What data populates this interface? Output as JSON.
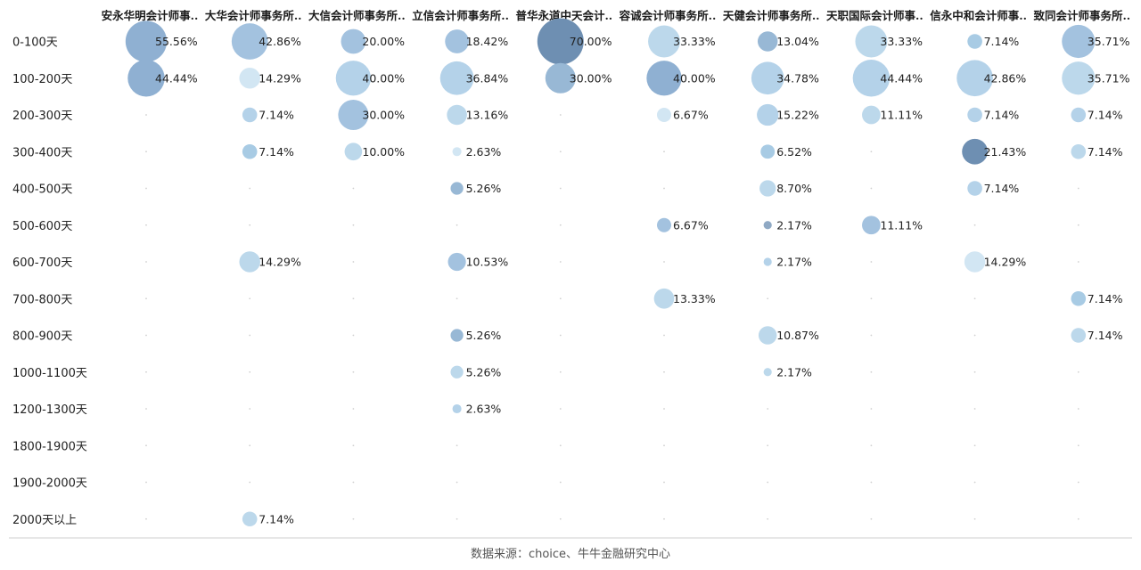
{
  "chart_data": {
    "type": "bubble-matrix",
    "columns": [
      "安永华明会计师事..",
      "大华会计师事务所..",
      "大信会计师事务所..",
      "立信会计师事务所..",
      "普华永道中天会计..",
      "容诚会计师事务所..",
      "天健会计师事务所..",
      "天职国际会计师事..",
      "信永中和会计师事..",
      "致同会计师事务所.."
    ],
    "rows": [
      "0-100天",
      "100-200天",
      "200-300天",
      "300-400天",
      "400-500天",
      "500-600天",
      "600-700天",
      "700-800天",
      "800-900天",
      "1000-1100天",
      "1200-1300天",
      "1800-1900天",
      "1900-2000天",
      "2000天以上"
    ],
    "cells": [
      {
        "row": 0,
        "col": 0,
        "label": "55.56%",
        "value": 55.56,
        "color": "#8fb0d2"
      },
      {
        "row": 0,
        "col": 1,
        "label": "42.86%",
        "value": 42.86,
        "color": "#a3c2df"
      },
      {
        "row": 0,
        "col": 2,
        "label": "20.00%",
        "value": 20.0,
        "color": "#a3c2df"
      },
      {
        "row": 0,
        "col": 3,
        "label": "18.42%",
        "value": 18.42,
        "color": "#a3c2df"
      },
      {
        "row": 0,
        "col": 4,
        "label": "70.00%",
        "value": 70.0,
        "color": "#6e8fb2"
      },
      {
        "row": 0,
        "col": 5,
        "label": "33.33%",
        "value": 33.33,
        "color": "#bcd8eb"
      },
      {
        "row": 0,
        "col": 6,
        "label": "13.04%",
        "value": 13.04,
        "color": "#98b8d5"
      },
      {
        "row": 0,
        "col": 7,
        "label": "33.33%",
        "value": 33.33,
        "color": "#bcd8eb"
      },
      {
        "row": 0,
        "col": 8,
        "label": "7.14%",
        "value": 7.14,
        "color": "#a8cbe4"
      },
      {
        "row": 0,
        "col": 9,
        "label": "35.71%",
        "value": 35.71,
        "color": "#a3c2df"
      },
      {
        "row": 1,
        "col": 0,
        "label": "44.44%",
        "value": 44.44,
        "color": "#8fb0d2"
      },
      {
        "row": 1,
        "col": 1,
        "label": "14.29%",
        "value": 14.29,
        "color": "#d2e6f3"
      },
      {
        "row": 1,
        "col": 2,
        "label": "40.00%",
        "value": 40.0,
        "color": "#b4d2e9"
      },
      {
        "row": 1,
        "col": 3,
        "label": "36.84%",
        "value": 36.84,
        "color": "#b4d2e9"
      },
      {
        "row": 1,
        "col": 4,
        "label": "30.00%",
        "value": 30.0,
        "color": "#98b8d5"
      },
      {
        "row": 1,
        "col": 5,
        "label": "40.00%",
        "value": 40.0,
        "color": "#8fb0d2"
      },
      {
        "row": 1,
        "col": 6,
        "label": "34.78%",
        "value": 34.78,
        "color": "#b4d2e9"
      },
      {
        "row": 1,
        "col": 7,
        "label": "44.44%",
        "value": 44.44,
        "color": "#b4d2e9"
      },
      {
        "row": 1,
        "col": 8,
        "label": "42.86%",
        "value": 42.86,
        "color": "#b4d2e9"
      },
      {
        "row": 1,
        "col": 9,
        "label": "35.71%",
        "value": 35.71,
        "color": "#bcd8eb"
      },
      {
        "row": 2,
        "col": 1,
        "label": "7.14%",
        "value": 7.14,
        "color": "#b4d2e9"
      },
      {
        "row": 2,
        "col": 2,
        "label": "30.00%",
        "value": 30.0,
        "color": "#a3c2df"
      },
      {
        "row": 2,
        "col": 3,
        "label": "13.16%",
        "value": 13.16,
        "color": "#bcd8eb"
      },
      {
        "row": 2,
        "col": 5,
        "label": "6.67%",
        "value": 6.67,
        "color": "#d2e6f3"
      },
      {
        "row": 2,
        "col": 6,
        "label": "15.22%",
        "value": 15.22,
        "color": "#b4d2e9"
      },
      {
        "row": 2,
        "col": 7,
        "label": "11.11%",
        "value": 11.11,
        "color": "#bcd8eb"
      },
      {
        "row": 2,
        "col": 8,
        "label": "7.14%",
        "value": 7.14,
        "color": "#b4d2e9"
      },
      {
        "row": 2,
        "col": 9,
        "label": "7.14%",
        "value": 7.14,
        "color": "#b4d2e9"
      },
      {
        "row": 3,
        "col": 1,
        "label": "7.14%",
        "value": 7.14,
        "color": "#a8cbe4"
      },
      {
        "row": 3,
        "col": 2,
        "label": "10.00%",
        "value": 10.0,
        "color": "#bcd8eb"
      },
      {
        "row": 3,
        "col": 3,
        "label": "2.63%",
        "value": 2.63,
        "color": "#d2e6f3"
      },
      {
        "row": 3,
        "col": 6,
        "label": "6.52%",
        "value": 6.52,
        "color": "#a8cbe4"
      },
      {
        "row": 3,
        "col": 8,
        "label": "21.43%",
        "value": 21.43,
        "color": "#6e8fb2"
      },
      {
        "row": 3,
        "col": 9,
        "label": "7.14%",
        "value": 7.14,
        "color": "#bcd8eb"
      },
      {
        "row": 4,
        "col": 3,
        "label": "5.26%",
        "value": 5.26,
        "color": "#98b8d5"
      },
      {
        "row": 4,
        "col": 6,
        "label": "8.70%",
        "value": 8.7,
        "color": "#bcd8eb"
      },
      {
        "row": 4,
        "col": 8,
        "label": "7.14%",
        "value": 7.14,
        "color": "#b4d2e9"
      },
      {
        "row": 5,
        "col": 5,
        "label": "6.67%",
        "value": 6.67,
        "color": "#a3c2df"
      },
      {
        "row": 5,
        "col": 6,
        "label": "2.17%",
        "value": 2.17,
        "color": "#8fa9c4"
      },
      {
        "row": 5,
        "col": 7,
        "label": "11.11%",
        "value": 11.11,
        "color": "#a3c2df"
      },
      {
        "row": 6,
        "col": 1,
        "label": "14.29%",
        "value": 14.29,
        "color": "#bcd8eb"
      },
      {
        "row": 6,
        "col": 3,
        "label": "10.53%",
        "value": 10.53,
        "color": "#a3c2df"
      },
      {
        "row": 6,
        "col": 6,
        "label": "2.17%",
        "value": 2.17,
        "color": "#b4d2e9"
      },
      {
        "row": 6,
        "col": 8,
        "label": "14.29%",
        "value": 14.29,
        "color": "#d2e6f3"
      },
      {
        "row": 7,
        "col": 5,
        "label": "13.33%",
        "value": 13.33,
        "color": "#bcd8eb"
      },
      {
        "row": 7,
        "col": 9,
        "label": "7.14%",
        "value": 7.14,
        "color": "#a8cbe4"
      },
      {
        "row": 8,
        "col": 3,
        "label": "5.26%",
        "value": 5.26,
        "color": "#98b8d5"
      },
      {
        "row": 8,
        "col": 6,
        "label": "10.87%",
        "value": 10.87,
        "color": "#bcd8eb"
      },
      {
        "row": 8,
        "col": 9,
        "label": "7.14%",
        "value": 7.14,
        "color": "#bcd8eb"
      },
      {
        "row": 9,
        "col": 3,
        "label": "5.26%",
        "value": 5.26,
        "color": "#bcd8eb"
      },
      {
        "row": 9,
        "col": 6,
        "label": "2.17%",
        "value": 2.17,
        "color": "#bcd8eb"
      },
      {
        "row": 10,
        "col": 3,
        "label": "2.63%",
        "value": 2.63,
        "color": "#b4d2e9"
      },
      {
        "row": 13,
        "col": 1,
        "label": "7.14%",
        "value": 7.14,
        "color": "#bcd8eb"
      }
    ],
    "size_encoding": "bubble area proportional to value"
  },
  "source_text": "数据来源：choice、牛牛金融研究中心"
}
